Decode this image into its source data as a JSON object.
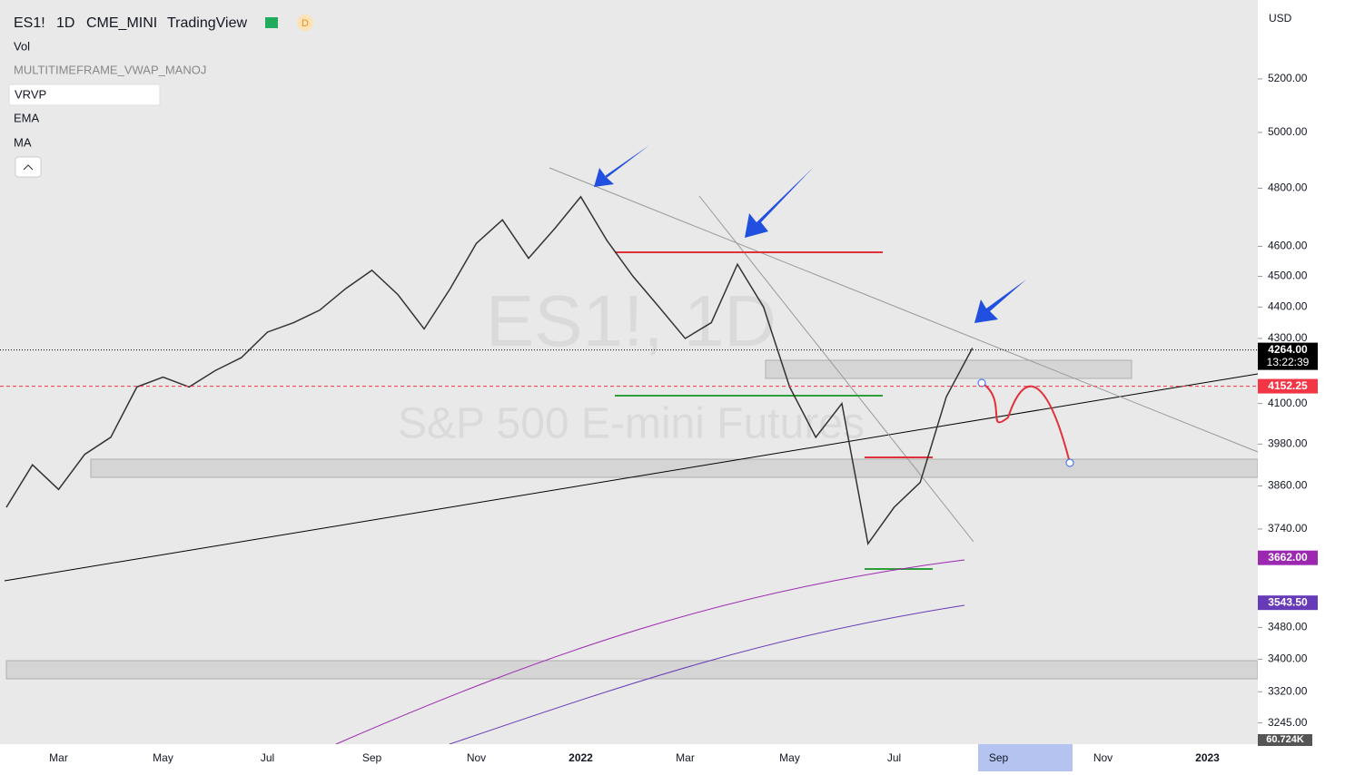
{
  "header": {
    "symbol": "ES1!",
    "interval": "1D",
    "exchange": "CME_MINI",
    "source": "TradingView",
    "badge": "D",
    "indicators": [
      "Vol",
      "MULTITIMEFRAME_VWAP_MANOJ",
      "VRVP",
      "EMA",
      "MA"
    ],
    "currency": "USD"
  },
  "watermark": {
    "line1": "ES1!, 1D",
    "line2": "S&P 500 E-mini Futures"
  },
  "chart_data": {
    "type": "line",
    "color": "#333333",
    "log_scale": true,
    "categories": [
      null,
      null,
      "Mar",
      null,
      null,
      null,
      "May",
      null,
      null,
      null,
      "Jul",
      null,
      null,
      null,
      "Sep",
      null,
      null,
      null,
      "Nov",
      null,
      null,
      null,
      "2022",
      null,
      null,
      null,
      "Mar",
      null,
      null,
      null,
      "May",
      null,
      null,
      null,
      "Jul",
      null,
      null,
      null,
      "Sep",
      null,
      null,
      null,
      "Nov",
      null,
      null,
      null,
      "2023",
      null
    ],
    "values": [
      3800,
      3920,
      3850,
      3950,
      4000,
      4150,
      4180,
      4150,
      4200,
      4240,
      4320,
      4350,
      4390,
      4460,
      4520,
      4440,
      4330,
      4460,
      4610,
      4690,
      4560,
      4660,
      4770,
      4620,
      4500,
      4400,
      4300,
      4350,
      4540,
      4400,
      4150,
      4000,
      4100,
      3700,
      3800,
      3870,
      4120,
      4270,
      null,
      null,
      null,
      null,
      null,
      null,
      null,
      null,
      null,
      null
    ],
    "ylim": [
      3195,
      5480
    ],
    "yticks": [
      {
        "value": 5200,
        "label": "5200.00"
      },
      {
        "value": 5000,
        "label": "5000.00"
      },
      {
        "value": 4800,
        "label": "4800.00"
      },
      {
        "value": 4600,
        "label": "4600.00"
      },
      {
        "value": 4500,
        "label": "4500.00"
      },
      {
        "value": 4400,
        "label": "4400.00"
      },
      {
        "value": 4300,
        "label": "4300.00"
      },
      {
        "value": 4100,
        "label": "4100.00"
      },
      {
        "value": 3980,
        "label": "3980.00"
      },
      {
        "value": 3860,
        "label": "3860.00"
      },
      {
        "value": 3740,
        "label": "3740.00"
      },
      {
        "value": 3480,
        "label": "3480.00"
      },
      {
        "value": 3400,
        "label": "3400.00"
      },
      {
        "value": 3320,
        "label": "3320.00"
      },
      {
        "value": 3245,
        "label": "3245.00"
      }
    ],
    "price_labels": [
      {
        "value": 4264,
        "label": "4264.00",
        "color": "#000000",
        "sub": "13:22:39"
      },
      {
        "value": 4152.25,
        "label": "4152.25",
        "color": "#f23645"
      },
      {
        "value": 3662,
        "label": "3662.00",
        "color": "#9c27b0"
      },
      {
        "value": 3543.5,
        "label": "3543.50",
        "color": "#673ab7"
      }
    ],
    "volume_badge": "60.724K"
  }
}
